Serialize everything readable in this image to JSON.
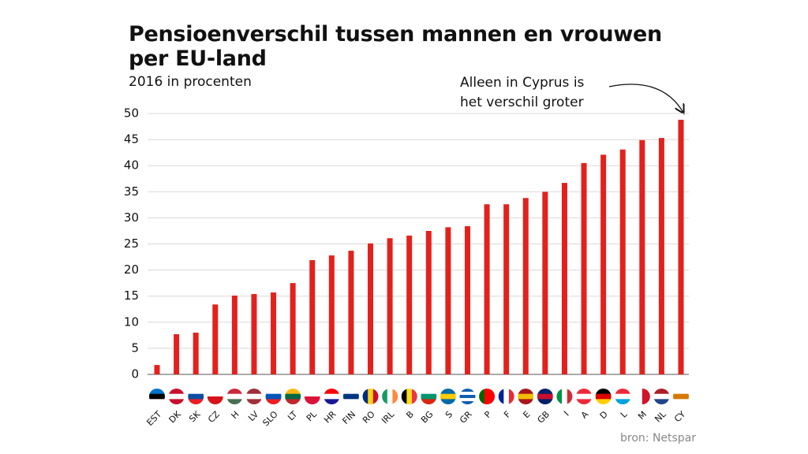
{
  "chart_data": {
    "type": "bar",
    "title": "Pensioenverschil tussen mannen en vrouwen per EU-land",
    "subtitle": "2016 in procenten",
    "annotation": "Alleen in Cyprus is het verschil groter",
    "source": "bron: Netspar",
    "categories": [
      "EST",
      "DK",
      "SK",
      "CZ",
      "H",
      "LV",
      "SLO",
      "LT",
      "PL",
      "HR",
      "FIN",
      "RO",
      "IRL",
      "B",
      "BG",
      "S",
      "GR",
      "P",
      "F",
      "E",
      "GB",
      "I",
      "A",
      "D",
      "L",
      "M",
      "NL",
      "CY"
    ],
    "values": [
      1.8,
      7.7,
      8.0,
      13.4,
      15.1,
      15.4,
      15.7,
      17.5,
      21.9,
      22.8,
      23.7,
      25.1,
      26.1,
      26.6,
      27.5,
      28.2,
      28.4,
      32.6,
      32.6,
      33.8,
      35.0,
      36.7,
      40.5,
      42.1,
      43.1,
      44.9,
      45.3,
      48.8
    ],
    "color": "#e3211c",
    "ylim": [
      0,
      50
    ],
    "yticks": [
      0,
      5,
      10,
      15,
      20,
      25,
      30,
      35,
      40,
      45,
      50
    ],
    "grid": true
  }
}
